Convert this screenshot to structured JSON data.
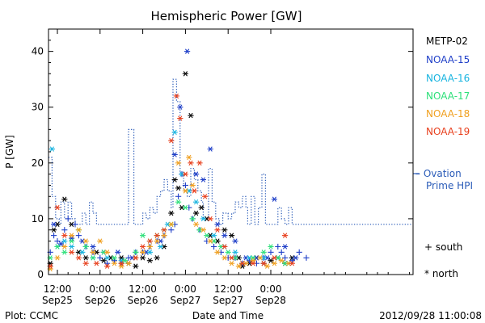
{
  "chart_data": {
    "type": "scatter",
    "title": "Hemispheric Power [GW]",
    "ylabel": "P [GW]",
    "xlabel": "Date and Time",
    "ylim": [
      0,
      44
    ],
    "yticks": [
      0,
      10,
      20,
      30,
      40
    ],
    "xlim_hours_from_sep25_00": [
      9.5,
      112
    ],
    "xticks": [
      {
        "hour": 12,
        "time": "12:00",
        "date": "Sep25"
      },
      {
        "hour": 24,
        "time": "0:00",
        "date": "Sep26"
      },
      {
        "hour": 36,
        "time": "12:00",
        "date": "Sep26"
      },
      {
        "hour": 48,
        "time": "0:00",
        "date": "Sep27"
      },
      {
        "hour": 60,
        "time": "12:00",
        "date": "Sep27"
      },
      {
        "hour": 72,
        "time": "0:00",
        "date": "Sep28"
      }
    ],
    "footer_left": "Plot: CCMC",
    "footer_right": "2012/09/28 11:00:08",
    "legend": {
      "placement": "right",
      "items": [
        {
          "name": "METP-02",
          "color": "#000000"
        },
        {
          "name": "NOAA-15",
          "color": "#1f3fc8"
        },
        {
          "name": "NOAA-16",
          "color": "#18b4e0"
        },
        {
          "name": "NOAA-17",
          "color": "#2ee07a"
        },
        {
          "name": "NOAA-18",
          "color": "#f0a020"
        },
        {
          "name": "NOAA-19",
          "color": "#e8401e"
        }
      ],
      "ovation_label_1": "– Ovation",
      "ovation_label_2": "Prime HPI",
      "ovation_color": "#2a5bb8",
      "marker_south": "+ south",
      "marker_north": "* north"
    },
    "ovation_hpi": {
      "name": "Ovation Prime HPI",
      "color": "#2a5bb8",
      "points": [
        [
          9.5,
          21
        ],
        [
          10.5,
          14
        ],
        [
          11.5,
          10
        ],
        [
          12.5,
          9
        ],
        [
          13,
          13
        ],
        [
          14,
          10
        ],
        [
          15,
          13
        ],
        [
          16,
          10
        ],
        [
          17,
          9
        ],
        [
          19,
          11
        ],
        [
          20,
          9
        ],
        [
          21,
          13
        ],
        [
          22,
          11
        ],
        [
          23,
          9
        ],
        [
          30,
          9
        ],
        [
          32,
          26
        ],
        [
          33.5,
          9
        ],
        [
          36,
          11
        ],
        [
          37,
          10
        ],
        [
          38,
          12
        ],
        [
          39,
          11
        ],
        [
          40,
          14
        ],
        [
          41,
          15
        ],
        [
          42,
          17
        ],
        [
          43,
          15
        ],
        [
          44,
          12
        ],
        [
          44.5,
          35
        ],
        [
          45.5,
          31
        ],
        [
          46.5,
          18
        ],
        [
          47.5,
          15
        ],
        [
          48.5,
          14
        ],
        [
          49.5,
          19
        ],
        [
          50.5,
          17
        ],
        [
          51.5,
          15
        ],
        [
          52.5,
          13
        ],
        [
          53,
          10
        ],
        [
          54.5,
          19
        ],
        [
          55.5,
          13
        ],
        [
          56.5,
          10
        ],
        [
          57.5,
          9
        ],
        [
          58.5,
          11
        ],
        [
          60,
          10
        ],
        [
          61,
          11
        ],
        [
          62,
          13
        ],
        [
          63,
          12
        ],
        [
          64,
          14
        ],
        [
          65,
          12
        ],
        [
          65.5,
          9
        ],
        [
          66.5,
          14
        ],
        [
          67.5,
          9
        ],
        [
          68.5,
          12
        ],
        [
          69.5,
          18
        ],
        [
          70.5,
          9
        ],
        [
          72.5,
          9
        ],
        [
          74,
          12
        ],
        [
          75,
          10
        ],
        [
          76,
          9
        ],
        [
          77,
          12
        ],
        [
          78,
          9
        ],
        [
          79,
          9
        ],
        [
          83,
          9
        ],
        [
          112,
          9
        ]
      ]
    },
    "series": [
      {
        "name": "METP-02",
        "color": "#000000",
        "marker": "*",
        "points": [
          [
            10,
            2
          ],
          [
            11,
            8
          ],
          [
            12,
            9
          ],
          [
            14,
            13.5
          ],
          [
            16,
            9
          ],
          [
            18,
            4
          ],
          [
            20,
            3
          ],
          [
            23,
            4
          ],
          [
            25,
            2.5
          ],
          [
            27,
            3
          ],
          [
            30,
            3
          ],
          [
            32,
            2
          ],
          [
            34,
            1.5
          ],
          [
            36,
            3
          ],
          [
            38,
            2.5
          ],
          [
            40,
            3
          ],
          [
            42,
            5
          ],
          [
            44,
            11
          ],
          [
            45,
            17
          ],
          [
            46,
            15.5
          ],
          [
            47,
            12
          ],
          [
            48,
            36
          ],
          [
            49.5,
            28.5
          ],
          [
            51,
            11
          ],
          [
            52.5,
            12
          ],
          [
            54,
            10
          ],
          [
            55,
            7
          ],
          [
            57,
            6
          ],
          [
            59,
            8
          ],
          [
            61,
            7
          ],
          [
            63,
            3
          ],
          [
            64,
            1.5
          ],
          [
            66,
            2
          ],
          [
            68,
            3
          ],
          [
            70,
            2
          ],
          [
            72,
            2.5
          ],
          [
            74,
            3
          ],
          [
            76,
            2
          ],
          [
            78,
            3
          ]
        ]
      },
      {
        "name": "NOAA-15",
        "color": "#1f3fc8",
        "marker": "+",
        "points": [
          [
            10,
            4
          ],
          [
            11,
            7
          ],
          [
            12,
            6
          ],
          [
            14,
            8
          ],
          [
            15,
            10
          ],
          [
            17,
            9
          ],
          [
            18,
            7
          ],
          [
            20,
            5
          ],
          [
            22,
            4
          ],
          [
            24,
            3
          ],
          [
            26,
            2
          ],
          [
            28,
            2.5
          ],
          [
            30,
            2
          ],
          [
            32,
            3
          ],
          [
            34,
            4
          ],
          [
            36,
            4
          ],
          [
            38,
            5
          ],
          [
            40,
            6
          ],
          [
            42,
            7
          ],
          [
            44,
            8
          ],
          [
            45,
            9
          ],
          [
            46,
            14
          ],
          [
            47,
            18
          ],
          [
            48,
            16
          ],
          [
            49,
            12
          ],
          [
            50,
            10
          ],
          [
            52,
            8
          ],
          [
            54,
            6
          ],
          [
            56,
            5
          ],
          [
            58,
            4
          ],
          [
            60,
            3
          ],
          [
            62,
            3
          ],
          [
            64,
            2
          ],
          [
            66,
            2.5
          ],
          [
            68,
            2
          ],
          [
            70,
            3
          ],
          [
            72,
            4
          ],
          [
            74,
            5
          ],
          [
            75,
            4
          ],
          [
            76,
            3
          ],
          [
            78,
            2.5
          ],
          [
            80,
            4
          ],
          [
            82,
            3
          ]
        ]
      },
      {
        "name": "NOAA-15 north",
        "color": "#1f3fc8",
        "marker": "*",
        "points": [
          [
            11,
            9
          ],
          [
            13,
            5.5
          ],
          [
            16,
            6.5
          ],
          [
            19,
            6
          ],
          [
            22,
            5
          ],
          [
            25,
            4
          ],
          [
            29,
            4
          ],
          [
            33,
            3
          ],
          [
            37,
            4
          ],
          [
            41,
            6
          ],
          [
            45,
            21.5
          ],
          [
            46.5,
            30
          ],
          [
            48.5,
            40
          ],
          [
            51,
            18
          ],
          [
            53,
            17
          ],
          [
            55,
            22.5
          ],
          [
            57,
            9
          ],
          [
            59,
            7
          ],
          [
            62,
            6
          ],
          [
            65,
            3
          ],
          [
            68,
            3
          ],
          [
            71,
            3
          ],
          [
            73,
            13.5
          ],
          [
            76,
            5
          ],
          [
            79,
            3
          ]
        ]
      },
      {
        "name": "NOAA-16",
        "color": "#18b4e0",
        "marker": "*",
        "points": [
          [
            10.5,
            22.5
          ],
          [
            12,
            5
          ],
          [
            14,
            6
          ],
          [
            16,
            5
          ],
          [
            19,
            4
          ],
          [
            22,
            3
          ],
          [
            26,
            3
          ],
          [
            30,
            2.5
          ],
          [
            34,
            3
          ],
          [
            38,
            4
          ],
          [
            41,
            5
          ],
          [
            43,
            9
          ],
          [
            45,
            25.5
          ],
          [
            47,
            18
          ],
          [
            49,
            15
          ],
          [
            51,
            13
          ],
          [
            53,
            10
          ],
          [
            56,
            7
          ],
          [
            59,
            5
          ],
          [
            62,
            4
          ],
          [
            66,
            3
          ],
          [
            70,
            3
          ],
          [
            74,
            3
          ],
          [
            77,
            2
          ]
        ]
      },
      {
        "name": "NOAA-17",
        "color": "#2ee07a",
        "marker": "*",
        "points": [
          [
            10,
            3
          ],
          [
            12,
            5
          ],
          [
            14,
            4
          ],
          [
            16,
            6
          ],
          [
            18,
            8
          ],
          [
            20,
            5
          ],
          [
            22,
            3
          ],
          [
            25,
            4
          ],
          [
            28,
            3
          ],
          [
            31,
            2.5
          ],
          [
            34,
            4
          ],
          [
            36,
            7
          ],
          [
            38,
            6
          ],
          [
            40,
            7
          ],
          [
            42,
            8
          ],
          [
            44,
            9
          ],
          [
            46,
            13
          ],
          [
            48,
            12
          ],
          [
            50,
            10
          ],
          [
            52,
            8
          ],
          [
            54,
            7
          ],
          [
            56,
            6
          ],
          [
            58,
            5
          ],
          [
            60,
            4
          ],
          [
            62,
            3
          ],
          [
            64,
            2
          ],
          [
            67,
            3
          ],
          [
            70,
            4
          ],
          [
            72,
            5
          ],
          [
            74,
            3
          ],
          [
            76,
            2
          ]
        ]
      },
      {
        "name": "NOAA-18",
        "color": "#f0a020",
        "marker": "*",
        "points": [
          [
            10,
            1
          ],
          [
            12,
            3
          ],
          [
            14,
            5
          ],
          [
            16,
            7
          ],
          [
            18,
            8
          ],
          [
            20,
            6
          ],
          [
            22,
            4
          ],
          [
            24,
            6
          ],
          [
            26,
            4
          ],
          [
            28,
            2
          ],
          [
            30,
            1.5
          ],
          [
            32,
            2
          ],
          [
            34,
            3
          ],
          [
            36,
            4
          ],
          [
            38,
            5
          ],
          [
            40,
            6
          ],
          [
            42,
            7
          ],
          [
            44,
            9
          ],
          [
            46,
            20
          ],
          [
            48,
            15
          ],
          [
            49,
            21
          ],
          [
            50,
            16
          ],
          [
            51,
            9
          ],
          [
            53,
            8
          ],
          [
            55,
            6
          ],
          [
            57,
            4
          ],
          [
            59,
            3
          ],
          [
            61,
            2
          ],
          [
            63,
            1.5
          ],
          [
            65,
            2
          ],
          [
            67,
            2.5
          ],
          [
            69,
            3
          ],
          [
            71,
            1.5
          ],
          [
            73,
            2
          ],
          [
            75,
            2.5
          ],
          [
            77,
            2
          ]
        ]
      },
      {
        "name": "NOAA-19",
        "color": "#e8401e",
        "marker": "*",
        "points": [
          [
            10,
            1.5
          ],
          [
            12,
            12
          ],
          [
            14,
            7
          ],
          [
            16,
            4
          ],
          [
            18,
            3
          ],
          [
            20,
            2
          ],
          [
            23,
            2
          ],
          [
            26,
            1.5
          ],
          [
            30,
            2
          ],
          [
            34,
            3
          ],
          [
            36,
            5
          ],
          [
            38,
            6
          ],
          [
            40,
            7
          ],
          [
            42,
            8
          ],
          [
            44,
            24
          ],
          [
            45.5,
            32
          ],
          [
            46.5,
            28
          ],
          [
            48,
            18
          ],
          [
            49.5,
            20
          ],
          [
            50.5,
            15
          ],
          [
            52,
            20
          ],
          [
            53.5,
            14
          ],
          [
            55,
            10
          ],
          [
            57,
            8
          ],
          [
            59,
            5
          ],
          [
            61,
            3
          ],
          [
            64,
            2
          ],
          [
            67,
            2
          ],
          [
            70,
            2
          ],
          [
            73,
            3
          ],
          [
            76,
            7
          ],
          [
            78,
            2
          ]
        ]
      }
    ]
  }
}
